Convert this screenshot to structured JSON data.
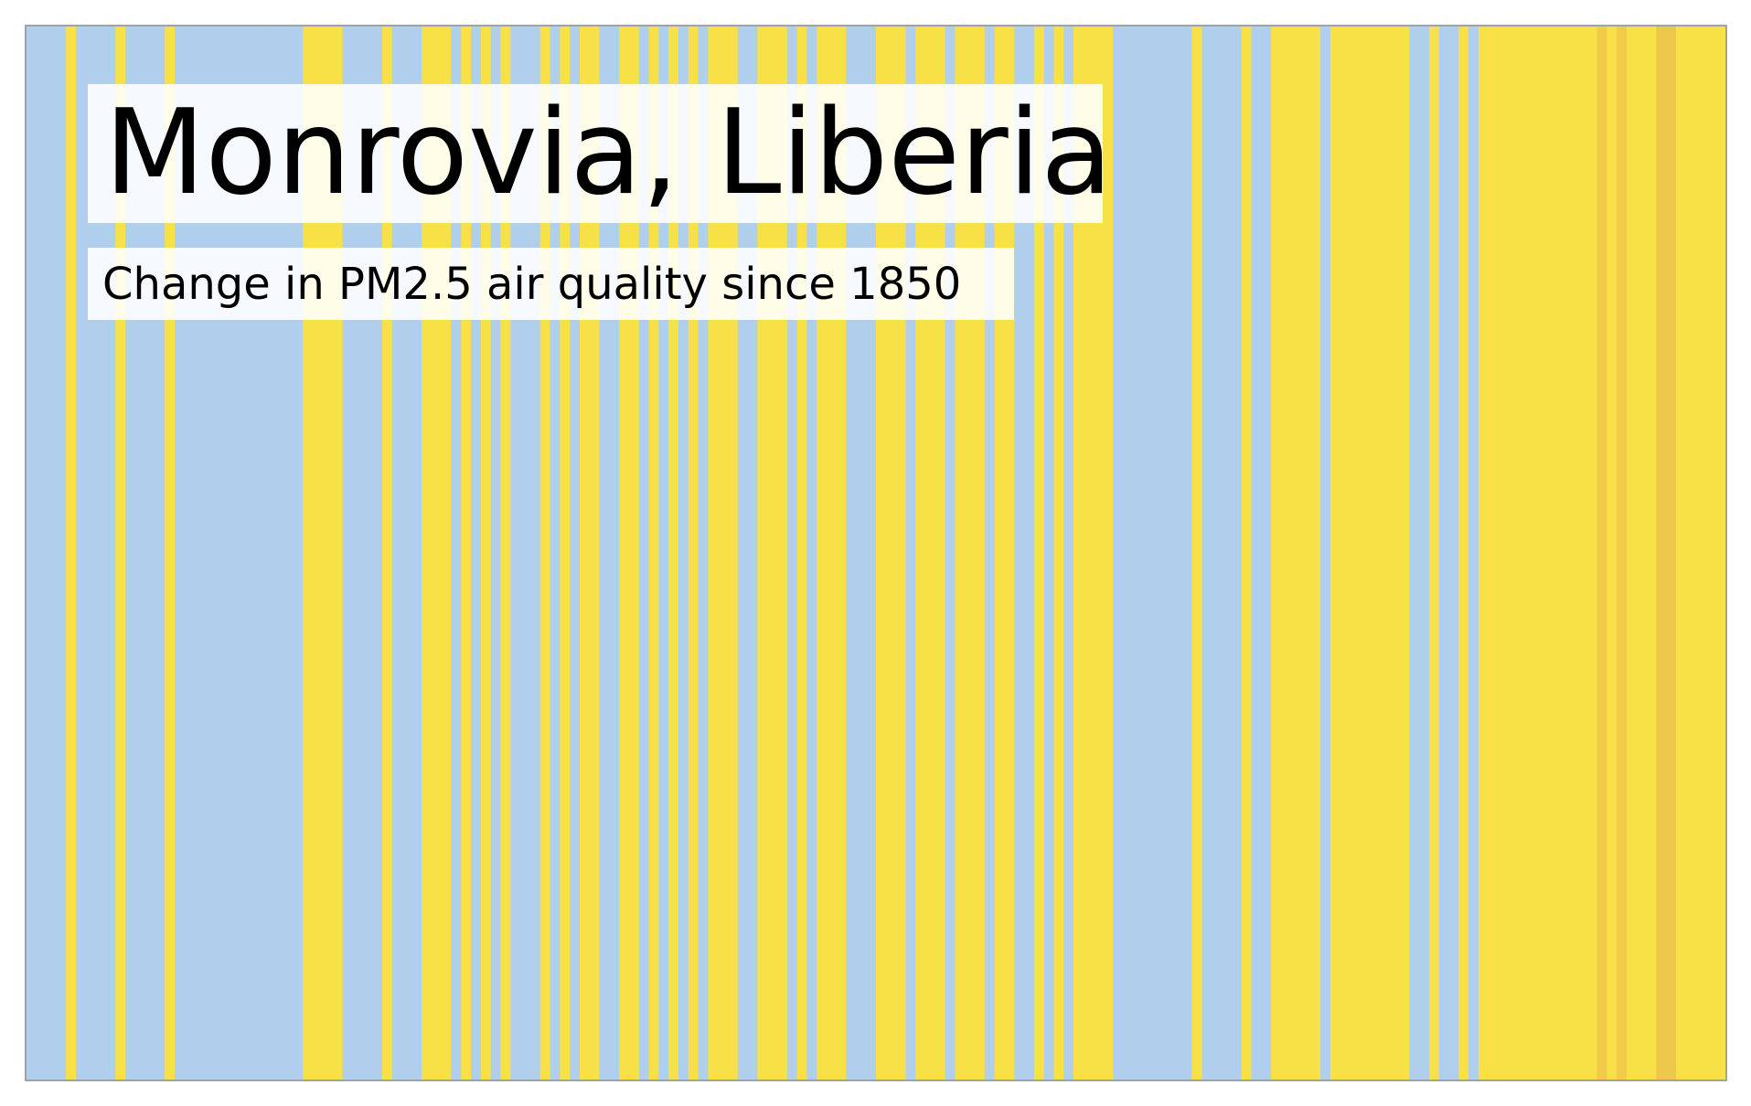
{
  "chart_data": {
    "type": "heatmap",
    "title": "Monrovia, Liberia",
    "subtitle": "Change in PM2.5 air quality since 1850",
    "x_start": 1850,
    "x_end": 2021,
    "palette": {
      "0": "#b0cfec",
      "1": "#f8e047",
      "2": "#f2cc48",
      "3": "#eec84a"
    },
    "level_runs": [
      [
        0,
        4
      ],
      [
        1,
        1
      ],
      [
        0,
        4
      ],
      [
        1,
        1
      ],
      [
        0,
        4
      ],
      [
        1,
        1
      ],
      [
        0,
        13
      ],
      [
        1,
        4
      ],
      [
        0,
        4
      ],
      [
        1,
        1
      ],
      [
        0,
        3
      ],
      [
        1,
        3
      ],
      [
        0,
        1
      ],
      [
        1,
        1
      ],
      [
        0,
        1
      ],
      [
        1,
        1
      ],
      [
        0,
        1
      ],
      [
        1,
        1
      ],
      [
        0,
        3
      ],
      [
        1,
        1
      ],
      [
        0,
        1
      ],
      [
        1,
        1
      ],
      [
        0,
        1
      ],
      [
        1,
        2
      ],
      [
        0,
        2
      ],
      [
        1,
        2
      ],
      [
        0,
        1
      ],
      [
        1,
        1
      ],
      [
        0,
        1
      ],
      [
        1,
        1
      ],
      [
        0,
        1
      ],
      [
        1,
        1
      ],
      [
        0,
        1
      ],
      [
        1,
        3
      ],
      [
        0,
        2
      ],
      [
        1,
        3
      ],
      [
        0,
        1
      ],
      [
        1,
        1
      ],
      [
        0,
        1
      ],
      [
        1,
        3
      ],
      [
        0,
        3
      ],
      [
        1,
        3
      ],
      [
        0,
        1
      ],
      [
        1,
        3
      ],
      [
        0,
        1
      ],
      [
        1,
        3
      ],
      [
        0,
        1
      ],
      [
        1,
        2
      ],
      [
        0,
        2
      ],
      [
        1,
        1
      ],
      [
        0,
        1
      ],
      [
        1,
        1
      ],
      [
        0,
        1
      ],
      [
        1,
        4
      ],
      [
        0,
        8
      ],
      [
        1,
        1
      ],
      [
        0,
        4
      ],
      [
        1,
        1
      ],
      [
        0,
        2
      ],
      [
        1,
        5
      ],
      [
        0,
        1
      ],
      [
        1,
        8
      ],
      [
        0,
        2
      ],
      [
        1,
        1
      ],
      [
        0,
        2
      ],
      [
        1,
        1
      ],
      [
        0,
        1
      ],
      [
        1,
        12
      ],
      [
        2,
        1
      ],
      [
        1,
        1
      ],
      [
        2,
        1
      ],
      [
        1,
        3
      ],
      [
        3,
        2
      ],
      [
        1,
        5
      ]
    ]
  }
}
